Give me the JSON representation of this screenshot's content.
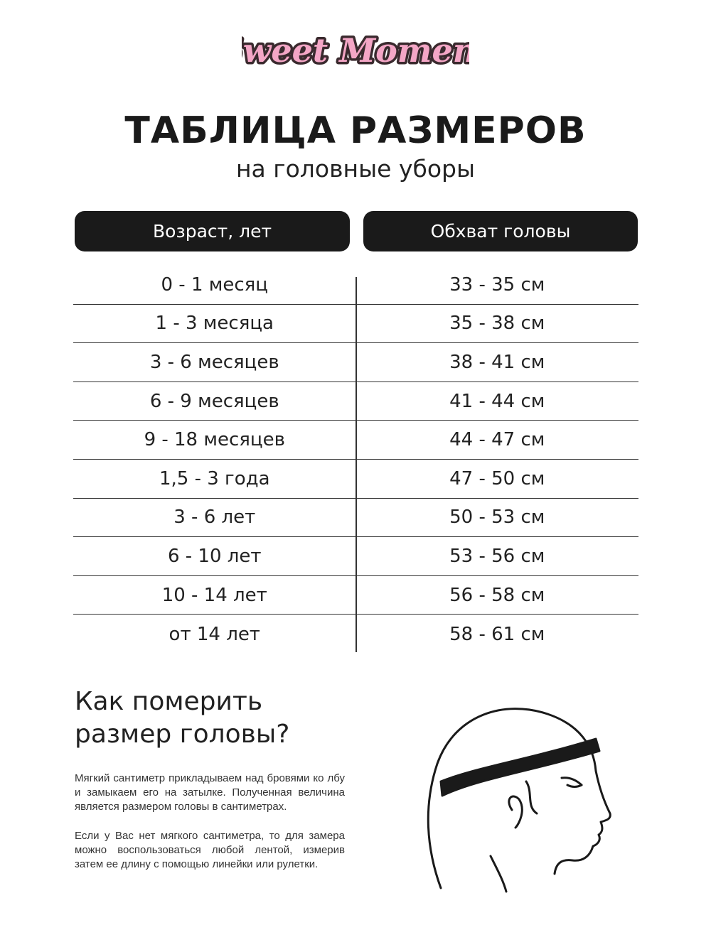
{
  "brand": {
    "logo_text": "Sweet Moment",
    "colors": {
      "pink": "#f4a6c6",
      "outline": "#3a2a2e"
    }
  },
  "header": {
    "title": "ТАБЛИЦА РАЗМЕРОВ",
    "subtitle": "на головные уборы"
  },
  "table": {
    "columns": [
      "Возраст, лет",
      "Обхват головы"
    ],
    "rows": [
      [
        "0 - 1 месяц",
        "33 - 35 см"
      ],
      [
        "1 - 3 месяца",
        "35 - 38 см"
      ],
      [
        "3 - 6 месяцев",
        "38 - 41 см"
      ],
      [
        "6 - 9 месяцев",
        "41 - 44 см"
      ],
      [
        "9 - 18 месяцев",
        "44 - 47 см"
      ],
      [
        "1,5 - 3 года",
        "47 - 50 см"
      ],
      [
        "3 - 6 лет",
        "50 - 53 см"
      ],
      [
        "6 - 10 лет",
        "53 - 56 см"
      ],
      [
        "10 - 14 лет",
        "56 - 58 см"
      ],
      [
        "от 14 лет",
        "58 - 61 см"
      ]
    ]
  },
  "howto": {
    "heading_line1": "Как померить",
    "heading_line2": "размер головы?",
    "paragraph1": "Мягкий сантиметр прикладываем над бровями ко лбу и замыкаем его на затылке. Полученная величина является размером головы в сантиметрах.",
    "paragraph2": "Если у Вас нет мягкого сантиметра, то для замера можно воспользоваться любой лентой, измерив затем ее длину с помощью линейки или рулетки.",
    "illustration": "head-measure-icon"
  }
}
